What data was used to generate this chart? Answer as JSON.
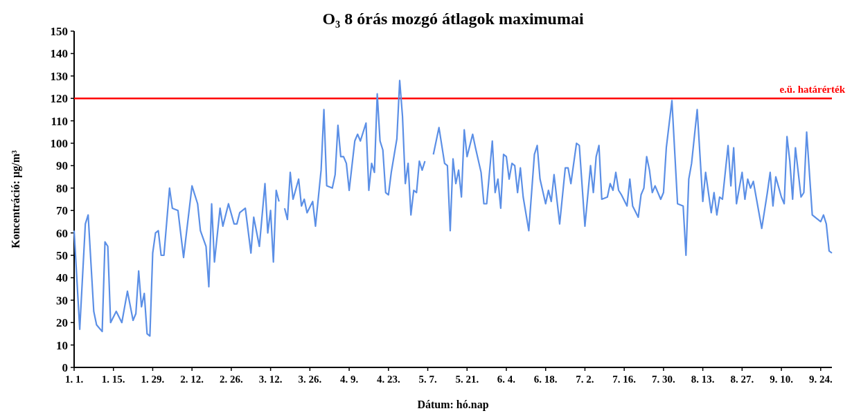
{
  "chart_data": {
    "type": "line",
    "title": "O₃ 8 órás  mozgó átlagok maximumai",
    "xlabel": "Dátum: hó.nap",
    "ylabel": "Koncentráció: µg/m³",
    "x": [
      "--01-01",
      "--01-03",
      "--01-05",
      "--01-06",
      "--01-08",
      "--01-09",
      "--01-11",
      "--01-12",
      "--01-13",
      "--01-14",
      "--01-16",
      "--01-18",
      "--01-20",
      "--01-22",
      "--01-23",
      "--01-24",
      "--01-25",
      "--01-26",
      "--01-27",
      "--01-28",
      "--01-29",
      "--01-30",
      "--01-31",
      "--02-01",
      "--02-02",
      "--02-04",
      "--02-05",
      "--02-07",
      "--02-09",
      "--02-12",
      "--02-14",
      "--02-15",
      "--02-17",
      "--02-18",
      "--02-19",
      "--02-20",
      "--02-22",
      "--02-23",
      "--02-25",
      "--02-27",
      "--02-28",
      "--03-01",
      "--03-03",
      "--03-05",
      "--03-06",
      "--03-08",
      "--03-10",
      "--03-11",
      "--03-12",
      "--03-13",
      "--03-14",
      "--03-15",
      "--03-16",
      "--03-17",
      "--03-18",
      "--03-19",
      "--03-20",
      "--03-22",
      "--03-23",
      "--03-24",
      "--03-25",
      "--03-27",
      "--03-28",
      "--03-30",
      "--03-31",
      "--04-01",
      "--04-03",
      "--04-04",
      "--04-05",
      "--04-06",
      "--04-07",
      "--04-08",
      "--04-09",
      "--04-11",
      "--04-12",
      "--04-13",
      "--04-15",
      "--04-16",
      "--04-17",
      "--04-18",
      "--04-19",
      "--04-20",
      "--04-21",
      "--04-22",
      "--04-23",
      "--04-24",
      "--04-26",
      "--04-27",
      "--04-28",
      "--04-29",
      "--04-30",
      "--05-01",
      "--05-02",
      "--05-03",
      "--05-04",
      "--05-05",
      "--05-06",
      "--05-07",
      "--05-09",
      "--05-11",
      "--05-13",
      "--05-14",
      "--05-15",
      "--05-16",
      "--05-17",
      "--05-18",
      "--05-19",
      "--05-20",
      "--05-21",
      "--05-23",
      "--05-24",
      "--05-26",
      "--05-27",
      "--05-28",
      "--05-30",
      "--05-31",
      "--06-01",
      "--06-02",
      "--06-03",
      "--06-04",
      "--06-05",
      "--06-06",
      "--06-07",
      "--06-08",
      "--06-09",
      "--06-10",
      "--06-12",
      "--06-14",
      "--06-15",
      "--06-16",
      "--06-18",
      "--06-19",
      "--06-20",
      "--06-21",
      "--06-23",
      "--06-25",
      "--06-26",
      "--06-27",
      "--06-29",
      "--06-30",
      "--07-02",
      "--07-04",
      "--07-05",
      "--07-06",
      "--07-07",
      "--07-08",
      "--07-10",
      "--07-11",
      "--07-12",
      "--07-13",
      "--07-14",
      "--07-15",
      "--07-17",
      "--07-18",
      "--07-19",
      "--07-21",
      "--07-22",
      "--07-23",
      "--07-24",
      "--07-25",
      "--07-26",
      "--07-27",
      "--07-29",
      "--07-30",
      "--07-31",
      "--08-02",
      "--08-04",
      "--08-06",
      "--08-07",
      "--08-08",
      "--08-09",
      "--08-11",
      "--08-13",
      "--08-14",
      "--08-16",
      "--08-17",
      "--08-18",
      "--08-19",
      "--08-20",
      "--08-22",
      "--08-23",
      "--08-24",
      "--08-25",
      "--08-27",
      "--08-28",
      "--08-29",
      "--08-30",
      "--08-31",
      "--09-01",
      "--09-03",
      "--09-05",
      "--09-06",
      "--09-07",
      "--09-08",
      "--09-10",
      "--09-11",
      "--09-12",
      "--09-13",
      "--09-14",
      "--09-15",
      "--09-16",
      "--09-17",
      "--09-18",
      "--09-19",
      "--09-21",
      "--09-22",
      "--09-24",
      "--09-25",
      "--09-26",
      "--09-27",
      "--09-28"
    ],
    "series": [
      {
        "color": "#5b8fe6",
        "values": [
          61,
          17,
          64,
          68,
          25,
          19,
          16,
          56,
          54,
          20,
          25,
          20,
          34,
          21,
          24,
          43,
          27,
          33,
          15,
          14,
          51,
          60,
          61,
          50,
          50,
          80,
          71,
          70,
          49,
          81,
          73,
          61,
          54,
          36,
          73,
          47,
          71,
          63,
          73,
          64,
          64,
          69,
          71,
          51,
          67,
          54,
          82,
          60,
          70,
          47,
          79,
          74,
          null,
          71,
          66,
          87,
          75,
          84,
          72,
          75,
          69,
          74,
          63,
          88,
          115,
          81,
          80,
          86,
          108,
          94,
          94,
          91,
          79,
          101,
          104,
          101,
          109,
          79,
          91,
          87,
          122,
          101,
          97,
          78,
          77,
          87,
          102,
          128,
          112,
          82,
          91,
          68,
          79,
          78,
          92,
          88,
          92,
          null,
          95,
          107,
          91,
          90,
          61,
          93,
          82,
          88,
          76,
          106,
          94,
          104,
          98,
          87,
          73,
          73,
          101,
          78,
          84,
          71,
          95,
          94,
          84,
          91,
          90,
          78,
          89,
          76,
          61,
          95,
          99,
          84,
          73,
          79,
          74,
          86,
          64,
          89,
          89,
          82,
          100,
          99,
          63,
          90,
          78,
          94,
          99,
          75,
          76,
          82,
          79,
          87,
          79,
          77,
          72,
          84,
          72,
          67,
          77,
          80,
          94,
          88,
          78,
          81,
          75,
          78,
          98,
          119,
          73,
          72,
          50,
          84,
          91,
          115,
          74,
          87,
          69,
          78,
          68,
          76,
          75,
          99,
          81,
          98,
          73,
          87,
          75,
          84,
          80,
          83,
          76,
          62,
          78,
          87,
          72,
          85,
          76,
          73,
          103,
          92,
          75,
          98,
          87,
          76,
          78,
          105,
          68,
          67,
          65,
          68,
          64,
          52,
          51
        ]
      }
    ],
    "xlim": [
      "--01-01",
      "--09-28"
    ],
    "xticks": [
      {
        "value": "--01-01",
        "label": "1. 1."
      },
      {
        "value": "--01-15",
        "label": "1. 15."
      },
      {
        "value": "--01-29",
        "label": "1. 29."
      },
      {
        "value": "--02-12",
        "label": "2. 12."
      },
      {
        "value": "--02-26",
        "label": "2. 26."
      },
      {
        "value": "--03-12",
        "label": "3. 12."
      },
      {
        "value": "--03-26",
        "label": "3. 26."
      },
      {
        "value": "--04-09",
        "label": "4. 9."
      },
      {
        "value": "--04-23",
        "label": "4. 23."
      },
      {
        "value": "--05-07",
        "label": "5. 7."
      },
      {
        "value": "--05-21",
        "label": "5. 21."
      },
      {
        "value": "--06-04",
        "label": "6. 4."
      },
      {
        "value": "--06-18",
        "label": "6. 18."
      },
      {
        "value": "--07-02",
        "label": "7. 2."
      },
      {
        "value": "--07-16",
        "label": "7. 16."
      },
      {
        "value": "--07-30",
        "label": "7. 30."
      },
      {
        "value": "--08-13",
        "label": "8. 13."
      },
      {
        "value": "--08-27",
        "label": "8. 27."
      },
      {
        "value": "--09-10",
        "label": "9. 10."
      },
      {
        "value": "--09-24",
        "label": "9. 24."
      }
    ],
    "ylim": [
      0,
      150
    ],
    "yticks": [
      0,
      10,
      20,
      30,
      40,
      50,
      60,
      70,
      80,
      90,
      100,
      110,
      120,
      130,
      140,
      150
    ],
    "ref_lines": [
      {
        "axis": "y",
        "value": 120,
        "label": "e.ü. határérték",
        "color": "#ff0000"
      }
    ]
  }
}
